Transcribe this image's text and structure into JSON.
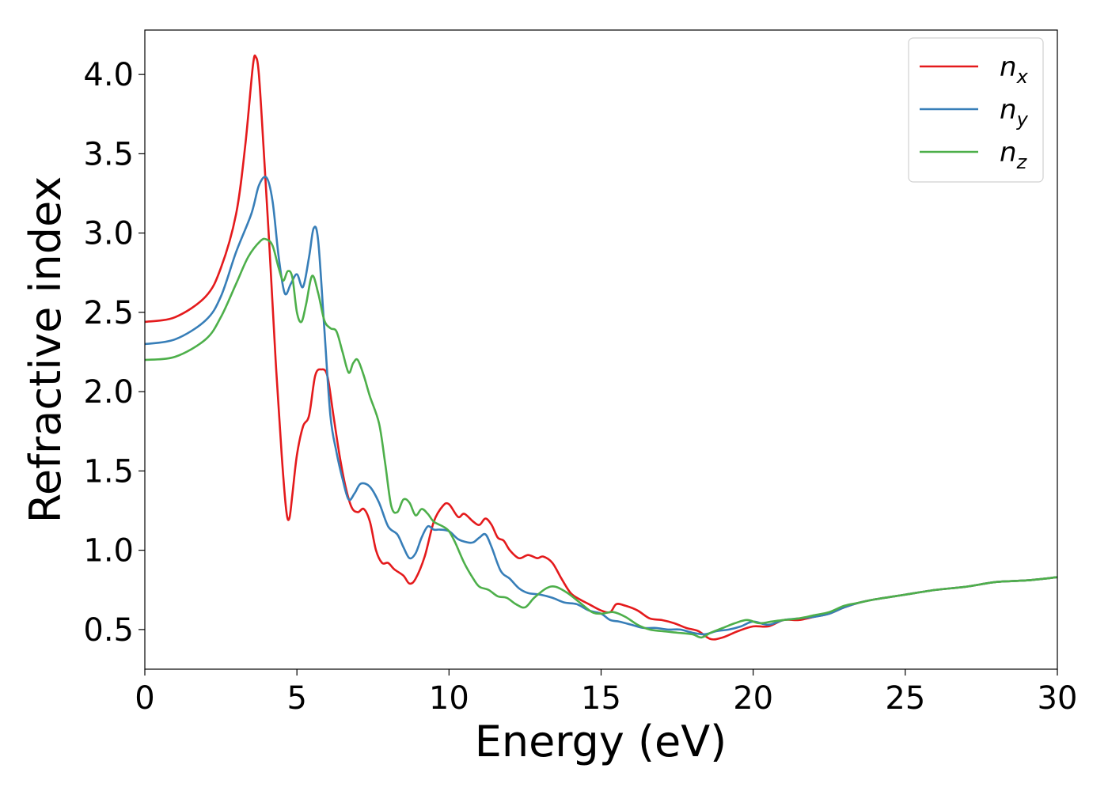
{
  "chart_data": {
    "type": "line",
    "title": "",
    "xlabel": "Energy (eV)",
    "ylabel": "Refractive index",
    "xlim": [
      0,
      30
    ],
    "ylim": [
      0.25,
      4.28
    ],
    "xticks": [
      0,
      5,
      10,
      15,
      20,
      25,
      30
    ],
    "yticks": [
      0.5,
      1.0,
      1.5,
      2.0,
      2.5,
      3.0,
      3.5,
      4.0
    ],
    "xtick_labels": [
      "0",
      "5",
      "10",
      "15",
      "20",
      "25",
      "30"
    ],
    "ytick_labels": [
      "0.5",
      "1.0",
      "1.5",
      "2.0",
      "2.5",
      "3.0",
      "3.5",
      "4.0"
    ],
    "grid": false,
    "legend_position": "top-right",
    "series": [
      {
        "name": "n",
        "subscript": "x",
        "color": "#e41a1c",
        "points": [
          [
            0,
            2.44
          ],
          [
            1,
            2.47
          ],
          [
            2,
            2.6
          ],
          [
            2.5,
            2.78
          ],
          [
            3,
            3.12
          ],
          [
            3.3,
            3.55
          ],
          [
            3.55,
            4.05
          ],
          [
            3.65,
            4.11
          ],
          [
            3.75,
            4.0
          ],
          [
            3.9,
            3.55
          ],
          [
            4.1,
            2.9
          ],
          [
            4.3,
            2.2
          ],
          [
            4.5,
            1.6
          ],
          [
            4.65,
            1.25
          ],
          [
            4.75,
            1.2
          ],
          [
            4.85,
            1.35
          ],
          [
            5.0,
            1.6
          ],
          [
            5.2,
            1.78
          ],
          [
            5.4,
            1.85
          ],
          [
            5.6,
            2.1
          ],
          [
            5.8,
            2.14
          ],
          [
            6.0,
            2.1
          ],
          [
            6.2,
            1.85
          ],
          [
            6.4,
            1.6
          ],
          [
            6.6,
            1.4
          ],
          [
            6.8,
            1.27
          ],
          [
            7.0,
            1.24
          ],
          [
            7.2,
            1.26
          ],
          [
            7.4,
            1.18
          ],
          [
            7.6,
            1.0
          ],
          [
            7.8,
            0.92
          ],
          [
            8.0,
            0.92
          ],
          [
            8.2,
            0.88
          ],
          [
            8.5,
            0.84
          ],
          [
            8.7,
            0.79
          ],
          [
            8.9,
            0.82
          ],
          [
            9.2,
            0.96
          ],
          [
            9.5,
            1.18
          ],
          [
            9.8,
            1.28
          ],
          [
            10.0,
            1.29
          ],
          [
            10.3,
            1.21
          ],
          [
            10.5,
            1.23
          ],
          [
            10.8,
            1.18
          ],
          [
            11.0,
            1.16
          ],
          [
            11.2,
            1.2
          ],
          [
            11.4,
            1.16
          ],
          [
            11.6,
            1.08
          ],
          [
            11.8,
            1.06
          ],
          [
            12.0,
            1.0
          ],
          [
            12.3,
            0.95
          ],
          [
            12.6,
            0.97
          ],
          [
            12.9,
            0.95
          ],
          [
            13.1,
            0.96
          ],
          [
            13.4,
            0.92
          ],
          [
            13.7,
            0.82
          ],
          [
            14.0,
            0.73
          ],
          [
            14.3,
            0.69
          ],
          [
            14.6,
            0.66
          ],
          [
            15.0,
            0.62
          ],
          [
            15.3,
            0.61
          ],
          [
            15.5,
            0.66
          ],
          [
            15.8,
            0.65
          ],
          [
            16.2,
            0.62
          ],
          [
            16.6,
            0.57
          ],
          [
            17.0,
            0.56
          ],
          [
            17.4,
            0.54
          ],
          [
            17.8,
            0.51
          ],
          [
            18.2,
            0.49
          ],
          [
            18.6,
            0.44
          ],
          [
            19.0,
            0.45
          ],
          [
            19.5,
            0.49
          ],
          [
            20.0,
            0.52
          ],
          [
            20.5,
            0.52
          ],
          [
            21.0,
            0.56
          ],
          [
            21.5,
            0.56
          ],
          [
            22.0,
            0.58
          ],
          [
            22.5,
            0.6
          ],
          [
            23.0,
            0.64
          ],
          [
            23.5,
            0.67
          ],
          [
            24.0,
            0.69
          ],
          [
            25.0,
            0.72
          ],
          [
            26.0,
            0.75
          ],
          [
            27.0,
            0.77
          ],
          [
            28.0,
            0.8
          ],
          [
            29.0,
            0.81
          ],
          [
            30.0,
            0.83
          ]
        ]
      },
      {
        "name": "n",
        "subscript": "y",
        "color": "#377eb8",
        "points": [
          [
            0,
            2.3
          ],
          [
            1,
            2.33
          ],
          [
            2,
            2.45
          ],
          [
            2.5,
            2.6
          ],
          [
            3,
            2.88
          ],
          [
            3.5,
            3.12
          ],
          [
            3.75,
            3.3
          ],
          [
            4.0,
            3.35
          ],
          [
            4.2,
            3.2
          ],
          [
            4.4,
            2.85
          ],
          [
            4.6,
            2.62
          ],
          [
            4.8,
            2.68
          ],
          [
            5.0,
            2.74
          ],
          [
            5.2,
            2.66
          ],
          [
            5.4,
            2.85
          ],
          [
            5.55,
            3.03
          ],
          [
            5.7,
            2.95
          ],
          [
            5.9,
            2.4
          ],
          [
            6.1,
            1.85
          ],
          [
            6.3,
            1.62
          ],
          [
            6.5,
            1.45
          ],
          [
            6.7,
            1.32
          ],
          [
            6.9,
            1.36
          ],
          [
            7.1,
            1.42
          ],
          [
            7.4,
            1.4
          ],
          [
            7.7,
            1.3
          ],
          [
            8.0,
            1.15
          ],
          [
            8.3,
            1.1
          ],
          [
            8.5,
            1.02
          ],
          [
            8.7,
            0.95
          ],
          [
            8.9,
            0.98
          ],
          [
            9.1,
            1.08
          ],
          [
            9.3,
            1.15
          ],
          [
            9.5,
            1.13
          ],
          [
            9.7,
            1.13
          ],
          [
            10.0,
            1.12
          ],
          [
            10.3,
            1.07
          ],
          [
            10.6,
            1.05
          ],
          [
            10.8,
            1.05
          ],
          [
            11.0,
            1.08
          ],
          [
            11.2,
            1.1
          ],
          [
            11.4,
            1.02
          ],
          [
            11.7,
            0.87
          ],
          [
            12.0,
            0.82
          ],
          [
            12.3,
            0.76
          ],
          [
            12.6,
            0.73
          ],
          [
            13.0,
            0.72
          ],
          [
            13.4,
            0.7
          ],
          [
            13.8,
            0.67
          ],
          [
            14.2,
            0.66
          ],
          [
            14.6,
            0.62
          ],
          [
            15.0,
            0.6
          ],
          [
            15.3,
            0.56
          ],
          [
            15.6,
            0.55
          ],
          [
            16.0,
            0.53
          ],
          [
            16.4,
            0.51
          ],
          [
            16.8,
            0.51
          ],
          [
            17.2,
            0.5
          ],
          [
            17.6,
            0.5
          ],
          [
            18.0,
            0.48
          ],
          [
            18.4,
            0.47
          ],
          [
            18.8,
            0.49
          ],
          [
            19.2,
            0.5
          ],
          [
            19.6,
            0.52
          ],
          [
            20.0,
            0.55
          ],
          [
            20.5,
            0.53
          ],
          [
            21.0,
            0.56
          ],
          [
            21.5,
            0.57
          ],
          [
            22.0,
            0.58
          ],
          [
            22.5,
            0.6
          ],
          [
            23.0,
            0.64
          ],
          [
            23.5,
            0.67
          ],
          [
            24.0,
            0.69
          ],
          [
            25.0,
            0.72
          ],
          [
            26.0,
            0.75
          ],
          [
            27.0,
            0.77
          ],
          [
            28.0,
            0.8
          ],
          [
            29.0,
            0.81
          ],
          [
            30.0,
            0.83
          ]
        ]
      },
      {
        "name": "n",
        "subscript": "z",
        "color": "#4daf4a",
        "points": [
          [
            0,
            2.2
          ],
          [
            1,
            2.22
          ],
          [
            2,
            2.33
          ],
          [
            2.5,
            2.47
          ],
          [
            3,
            2.68
          ],
          [
            3.4,
            2.85
          ],
          [
            3.8,
            2.95
          ],
          [
            4.0,
            2.96
          ],
          [
            4.2,
            2.92
          ],
          [
            4.4,
            2.78
          ],
          [
            4.55,
            2.7
          ],
          [
            4.7,
            2.76
          ],
          [
            4.85,
            2.72
          ],
          [
            5.0,
            2.5
          ],
          [
            5.15,
            2.44
          ],
          [
            5.3,
            2.55
          ],
          [
            5.5,
            2.73
          ],
          [
            5.7,
            2.62
          ],
          [
            5.9,
            2.45
          ],
          [
            6.1,
            2.4
          ],
          [
            6.3,
            2.38
          ],
          [
            6.5,
            2.25
          ],
          [
            6.7,
            2.12
          ],
          [
            6.85,
            2.18
          ],
          [
            7.0,
            2.2
          ],
          [
            7.2,
            2.1
          ],
          [
            7.4,
            1.97
          ],
          [
            7.7,
            1.8
          ],
          [
            7.9,
            1.55
          ],
          [
            8.1,
            1.28
          ],
          [
            8.3,
            1.24
          ],
          [
            8.5,
            1.32
          ],
          [
            8.7,
            1.3
          ],
          [
            8.9,
            1.22
          ],
          [
            9.1,
            1.26
          ],
          [
            9.3,
            1.23
          ],
          [
            9.5,
            1.18
          ],
          [
            9.8,
            1.15
          ],
          [
            10.0,
            1.12
          ],
          [
            10.2,
            1.05
          ],
          [
            10.5,
            0.92
          ],
          [
            10.8,
            0.82
          ],
          [
            11.0,
            0.77
          ],
          [
            11.3,
            0.75
          ],
          [
            11.6,
            0.71
          ],
          [
            11.9,
            0.7
          ],
          [
            12.2,
            0.66
          ],
          [
            12.5,
            0.64
          ],
          [
            12.8,
            0.7
          ],
          [
            13.2,
            0.76
          ],
          [
            13.5,
            0.77
          ],
          [
            13.9,
            0.73
          ],
          [
            14.3,
            0.67
          ],
          [
            14.7,
            0.61
          ],
          [
            15.0,
            0.6
          ],
          [
            15.4,
            0.61
          ],
          [
            15.8,
            0.58
          ],
          [
            16.2,
            0.53
          ],
          [
            16.6,
            0.5
          ],
          [
            17.0,
            0.49
          ],
          [
            17.5,
            0.48
          ],
          [
            18.0,
            0.47
          ],
          [
            18.3,
            0.45
          ],
          [
            18.6,
            0.48
          ],
          [
            19.0,
            0.51
          ],
          [
            19.4,
            0.54
          ],
          [
            19.8,
            0.56
          ],
          [
            20.2,
            0.54
          ],
          [
            20.6,
            0.55
          ],
          [
            21.0,
            0.56
          ],
          [
            21.5,
            0.57
          ],
          [
            22.0,
            0.59
          ],
          [
            22.5,
            0.61
          ],
          [
            23.0,
            0.65
          ],
          [
            23.5,
            0.67
          ],
          [
            24.0,
            0.69
          ],
          [
            25.0,
            0.72
          ],
          [
            26.0,
            0.75
          ],
          [
            27.0,
            0.77
          ],
          [
            28.0,
            0.8
          ],
          [
            29.0,
            0.81
          ],
          [
            30.0,
            0.83
          ]
        ]
      }
    ]
  }
}
